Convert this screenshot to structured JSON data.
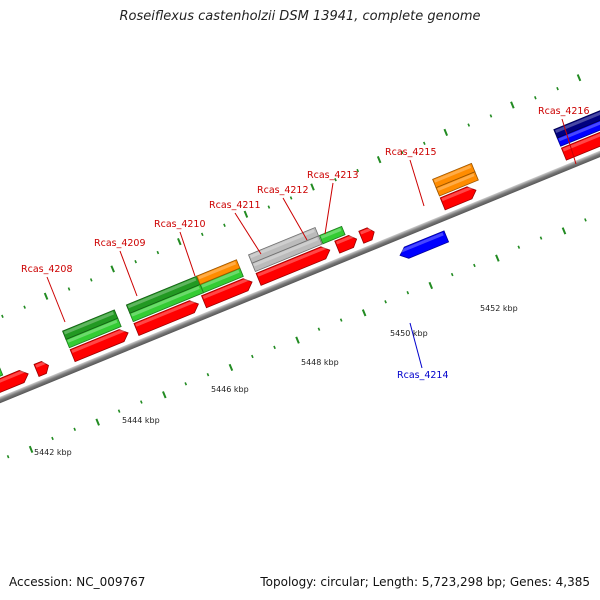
{
  "title": "Roseiflexus castenholzii DSM 13941, complete genome",
  "accession": "Accession: NC_009767",
  "topology": "Topology: circular; Length: 5,723,298 bp; Genes: 4,385",
  "colors": {
    "red": "#ff0000",
    "green": "#33cc33",
    "dark_green": "#229922",
    "orange": "#ff8c00",
    "gray": "#bbbbbb",
    "blue": "#0000ff",
    "navy": "#000080",
    "label_red": "#cc0000",
    "label_blue": "#0000cc",
    "tick": "#228b22"
  },
  "scale_labels": [
    "5442 kbp",
    "5444 kbp",
    "5446 kbp",
    "5448 kbp",
    "5450 kbp",
    "5452 kbp"
  ],
  "gene_labels": [
    {
      "text": "Rcas_4208",
      "color": "red"
    },
    {
      "text": "Rcas_4209",
      "color": "red"
    },
    {
      "text": "Rcas_4210",
      "color": "red"
    },
    {
      "text": "Rcas_4211",
      "color": "red"
    },
    {
      "text": "Rcas_4212",
      "color": "red"
    },
    {
      "text": "Rcas_4213",
      "color": "red"
    },
    {
      "text": "Rcas_4215",
      "color": "red"
    },
    {
      "text": "Rcas_4216",
      "color": "red"
    },
    {
      "text": "Rcas_4214",
      "color": "blue"
    }
  ]
}
